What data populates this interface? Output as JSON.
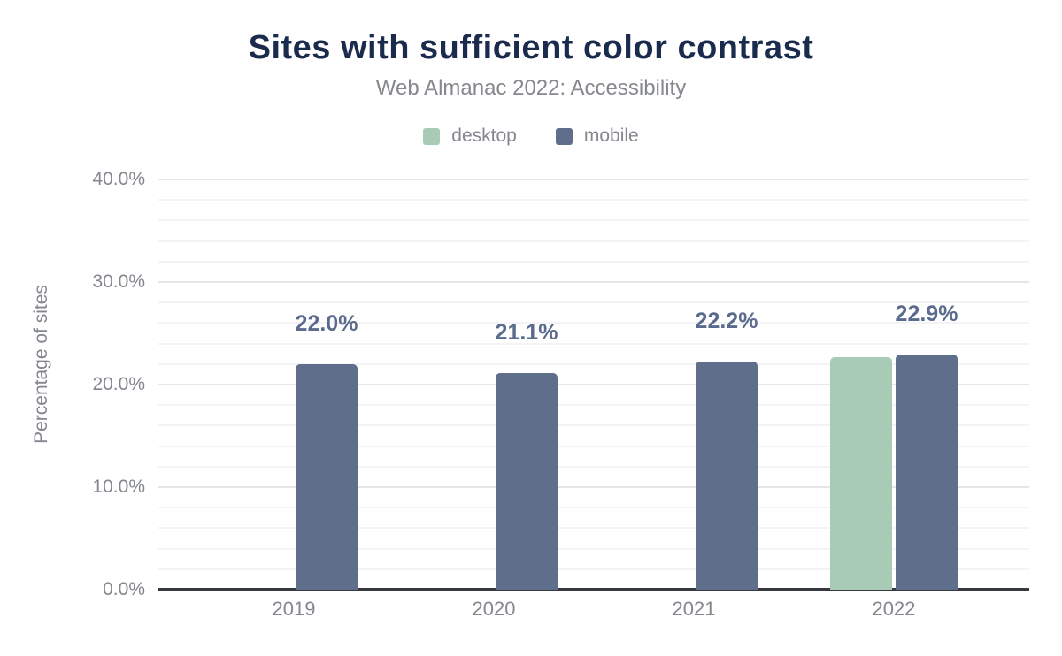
{
  "header": {
    "title": "Sites with sufficient color contrast",
    "subtitle": "Web Almanac 2022: Accessibility"
  },
  "legend": [
    {
      "label": "desktop",
      "color": "#a8cbb5"
    },
    {
      "label": "mobile",
      "color": "#5e6e8b"
    }
  ],
  "colors": {
    "title": "#1a2b4d",
    "subtitle": "#85888d",
    "axis_text": "#84878e",
    "data_label": "#5a6b8e",
    "desktop_bar": "#a8cbb5",
    "mobile_bar": "#5e6e8b",
    "axis_line": "#36393f",
    "gridline_major": "#e6e6e9",
    "gridline_minor": "#f4f4f6"
  },
  "chart_data": {
    "type": "bar",
    "title": "Sites with sufficient color contrast",
    "subtitle": "Web Almanac 2022: Accessibility",
    "categories": [
      "2019",
      "2020",
      "2021",
      "2022"
    ],
    "series": [
      {
        "name": "desktop",
        "color": "#a8cbb5",
        "values": [
          null,
          null,
          null,
          22.7
        ]
      },
      {
        "name": "mobile",
        "color": "#5e6e8b",
        "values": [
          22.0,
          21.1,
          22.2,
          22.9
        ]
      }
    ],
    "data_labels": {
      "series": "mobile",
      "values": [
        "22.0%",
        "21.1%",
        "22.2%",
        "22.9%"
      ]
    },
    "xlabel": "",
    "ylabel": "Percentage of sites",
    "ylim": [
      0,
      40
    ],
    "yticks": [
      "0.0%",
      "10.0%",
      "20.0%",
      "30.0%",
      "40.0%"
    ],
    "ytick_values": [
      0,
      10,
      20,
      30,
      40
    ],
    "grid": "horizontal; minor every 2%, major every 10%",
    "legend_position": "top"
  }
}
